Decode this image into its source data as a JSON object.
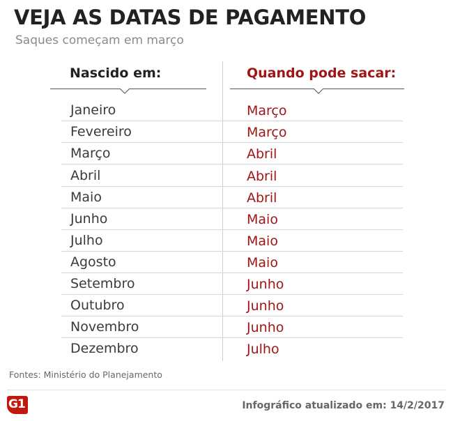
{
  "header": {
    "title": "VEJA AS DATAS DE PAGAMENTO",
    "subtitle": "Saques começam em março"
  },
  "table": {
    "columns": [
      "Nascido em:",
      "Quando pode sacar:"
    ],
    "rows": [
      {
        "born": "Janeiro",
        "withdraw": "Março"
      },
      {
        "born": "Fevereiro",
        "withdraw": "Março"
      },
      {
        "born": "Março",
        "withdraw": "Abril"
      },
      {
        "born": "Abril",
        "withdraw": "Abril"
      },
      {
        "born": "Maio",
        "withdraw": "Abril"
      },
      {
        "born": "Junho",
        "withdraw": "Maio"
      },
      {
        "born": "Julho",
        "withdraw": "Maio"
      },
      {
        "born": "Agosto",
        "withdraw": "Maio"
      },
      {
        "born": "Setembro",
        "withdraw": "Junho"
      },
      {
        "born": "Outubro",
        "withdraw": "Junho"
      },
      {
        "born": "Novembro",
        "withdraw": "Junho"
      },
      {
        "born": "Dezembro",
        "withdraw": "Julho"
      }
    ]
  },
  "footer": {
    "source": "Fontes: Ministério do Planejamento",
    "logo_text": "G1",
    "updated": "Infográfico atualizado em: 14/2/2017"
  },
  "colors": {
    "accent": "#a01616",
    "logo": "#c4170c"
  }
}
